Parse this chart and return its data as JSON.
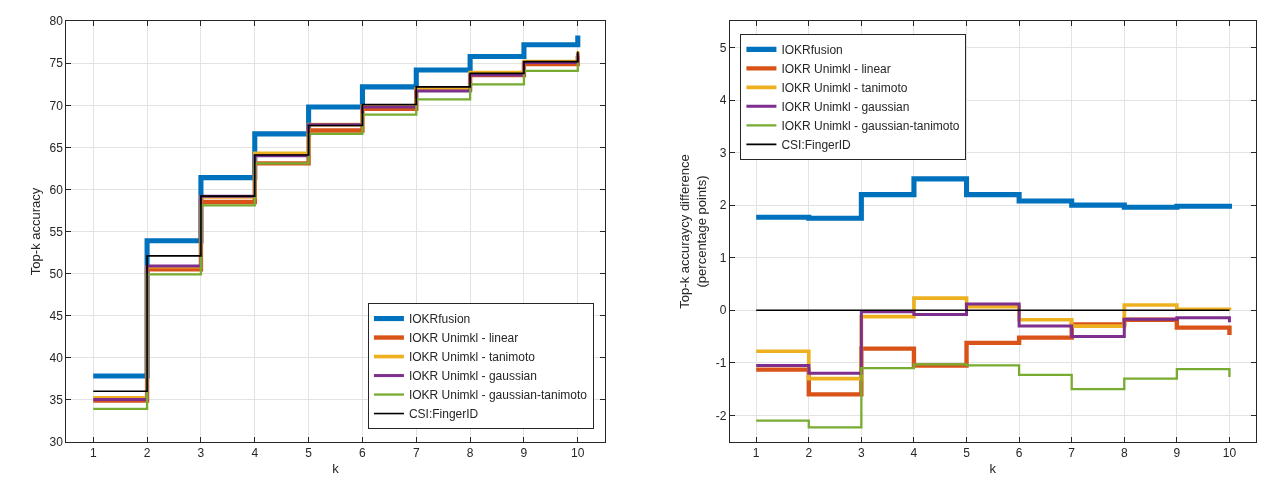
{
  "chart_data": [
    {
      "type": "step",
      "xlabel": "k",
      "ylabel": "Top-k accuracy",
      "x": [
        1,
        2,
        3,
        4,
        5,
        6,
        7,
        8,
        9,
        10
      ],
      "xlim": [
        0.5,
        10.5
      ],
      "xticks": [
        1,
        2,
        3,
        4,
        5,
        6,
        7,
        8,
        9,
        10
      ],
      "ylim": [
        30,
        80
      ],
      "yticks": [
        30,
        35,
        40,
        45,
        50,
        55,
        60,
        65,
        70,
        75,
        80
      ],
      "grid": true,
      "legend": "bottom right",
      "series": [
        {
          "name": "IOKRfusion",
          "color": "#0072bd",
          "values": [
            37.8,
            53.9,
            61.4,
            66.6,
            69.8,
            72.2,
            74.2,
            75.8,
            77.2,
            78.3
          ]
        },
        {
          "name": "IOKR Unimkl - linear",
          "color": "#d95319",
          "values": [
            34.9,
            50.5,
            58.5,
            63.1,
            67.0,
            69.6,
            71.9,
            73.6,
            74.9,
            75.9
          ]
        },
        {
          "name": "IOKR Unimkl - tanimoto",
          "color": "#edb120",
          "values": [
            35.2,
            50.8,
            59.1,
            64.3,
            67.7,
            69.9,
            71.9,
            73.9,
            75.2,
            76.4
          ]
        },
        {
          "name": "IOKR Unimkl - gaussian",
          "color": "#7e2f8e",
          "values": [
            35.0,
            50.9,
            59.2,
            64.0,
            67.7,
            69.8,
            71.7,
            73.6,
            75.1,
            76.2
          ]
        },
        {
          "name": "IOKR Unimkl - gaussian-tanimoto",
          "color": "#77ac30",
          "values": [
            33.9,
            49.9,
            58.1,
            63.1,
            66.6,
            68.9,
            70.7,
            72.5,
            74.1,
            75.1
          ]
        },
        {
          "name": "CSI:FingerID",
          "color": "#000000",
          "values": [
            36.0,
            52.1,
            59.2,
            64.1,
            67.6,
            70.1,
            72.2,
            73.8,
            75.2,
            76.4
          ]
        }
      ]
    },
    {
      "type": "step",
      "xlabel": "k",
      "ylabel": "Top-k accuraycy difference\n(percentage points)",
      "x": [
        1,
        2,
        3,
        4,
        5,
        6,
        7,
        8,
        9,
        10
      ],
      "xlim": [
        0.5,
        10.5
      ],
      "xticks": [
        1,
        2,
        3,
        4,
        5,
        6,
        7,
        8,
        9,
        10
      ],
      "ylim": [
        -2.5,
        5.5
      ],
      "yticks": [
        -2,
        -1,
        0,
        1,
        2,
        3,
        4,
        5
      ],
      "grid": true,
      "legend": "top left",
      "series": [
        {
          "name": "IOKRfusion",
          "color": "#0072bd",
          "values": [
            1.77,
            1.75,
            2.2,
            2.5,
            2.2,
            2.08,
            2.0,
            1.96,
            1.98,
            1.93
          ]
        },
        {
          "name": "IOKR Unimkl - linear",
          "color": "#d95319",
          "values": [
            -1.13,
            -1.6,
            -0.73,
            -1.05,
            -0.62,
            -0.52,
            -0.27,
            -0.18,
            -0.33,
            -0.47
          ]
        },
        {
          "name": "IOKR Unimkl - tanimoto",
          "color": "#edb120",
          "values": [
            -0.78,
            -1.3,
            -0.12,
            0.23,
            0.07,
            -0.18,
            -0.3,
            0.1,
            0.02,
            0.0
          ]
        },
        {
          "name": "IOKR Unimkl - gaussian",
          "color": "#7e2f8e",
          "values": [
            -1.05,
            -1.2,
            -0.03,
            -0.08,
            0.12,
            -0.3,
            -0.5,
            -0.17,
            -0.14,
            -0.23
          ]
        },
        {
          "name": "IOKR Unimkl - gaussian-tanimoto",
          "color": "#77ac30",
          "values": [
            -2.1,
            -2.23,
            -1.1,
            -1.03,
            -1.05,
            -1.23,
            -1.5,
            -1.3,
            -1.12,
            -1.27
          ]
        },
        {
          "name": "CSI:FingerID",
          "color": "#000000",
          "values": [
            0,
            0,
            0,
            0,
            0,
            0,
            0,
            0,
            0,
            0
          ]
        }
      ]
    }
  ]
}
